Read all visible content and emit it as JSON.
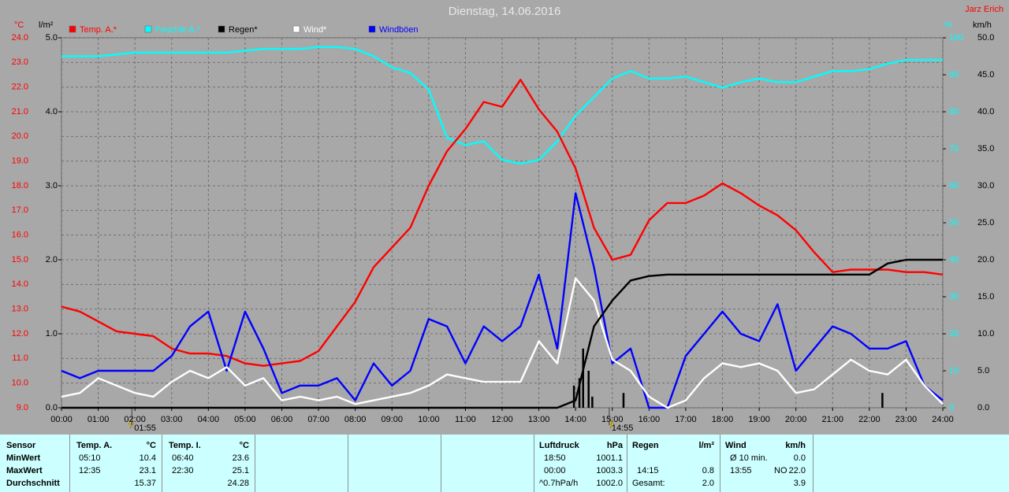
{
  "chart_data": {
    "type": "line",
    "title": "Dienstag, 14.06.2016",
    "author": "Jarz Erich",
    "units": {
      "y": "°C",
      "y2": "l/m²",
      "y3": "%",
      "y4": "km/h"
    },
    "grid": true,
    "x": [
      0,
      0.5,
      1,
      1.5,
      2,
      2.5,
      3,
      3.5,
      4,
      4.5,
      5,
      5.5,
      6,
      6.5,
      7,
      7.5,
      8,
      8.5,
      9,
      9.5,
      10,
      10.5,
      11,
      11.5,
      12,
      12.5,
      13,
      13.5,
      14,
      14.5,
      15,
      15.5,
      16,
      16.5,
      17,
      17.5,
      18,
      18.5,
      19,
      19.5,
      20,
      20.5,
      21,
      21.5,
      22,
      22.5,
      23,
      23.5,
      24
    ],
    "xlim": [
      0,
      24
    ],
    "xticks": [
      {
        "value": 0,
        "label": "00:00"
      },
      {
        "value": 1,
        "label": "01:00"
      },
      {
        "value": 2,
        "label": "02:00"
      },
      {
        "value": 3,
        "label": "03:00"
      },
      {
        "value": 4,
        "label": "04:00"
      },
      {
        "value": 5,
        "label": "05:00"
      },
      {
        "value": 6,
        "label": "06:00"
      },
      {
        "value": 7,
        "label": "07:00"
      },
      {
        "value": 8,
        "label": "08:00"
      },
      {
        "value": 9,
        "label": "09:00"
      },
      {
        "value": 10,
        "label": "10:00"
      },
      {
        "value": 11,
        "label": "11:00"
      },
      {
        "value": 12,
        "label": "12:00"
      },
      {
        "value": 13,
        "label": "13:00"
      },
      {
        "value": 14,
        "label": "14:00"
      },
      {
        "value": 15,
        "label": "15:00"
      },
      {
        "value": 16,
        "label": "16:00"
      },
      {
        "value": 17,
        "label": "17:00"
      },
      {
        "value": 18,
        "label": "18:00"
      },
      {
        "value": 19,
        "label": "19:00"
      },
      {
        "value": 20,
        "label": "20:00"
      },
      {
        "value": 21,
        "label": "21:00"
      },
      {
        "value": 22,
        "label": "22:00"
      },
      {
        "value": 23,
        "label": "23:00"
      },
      {
        "value": 24,
        "label": "24:00"
      }
    ],
    "ylim": [
      9,
      24
    ],
    "yticks": [
      {
        "value": 9,
        "label": "9.0"
      },
      {
        "value": 10,
        "label": "10.0"
      },
      {
        "value": 11,
        "label": "11.0"
      },
      {
        "value": 12,
        "label": "12.0"
      },
      {
        "value": 13,
        "label": "13.0"
      },
      {
        "value": 14,
        "label": "14.0"
      },
      {
        "value": 15,
        "label": "15.0"
      },
      {
        "value": 16,
        "label": "16.0"
      },
      {
        "value": 17,
        "label": "17.0"
      },
      {
        "value": 18,
        "label": "18.0"
      },
      {
        "value": 19,
        "label": "19.0"
      },
      {
        "value": 20,
        "label": "20.0"
      },
      {
        "value": 21,
        "label": "21.0"
      },
      {
        "value": 22,
        "label": "22.0"
      },
      {
        "value": 23,
        "label": "23.0"
      },
      {
        "value": 24,
        "label": "24.0"
      }
    ],
    "y2lim": [
      0,
      5
    ],
    "y2ticks": [
      {
        "value": 0,
        "label": "0.0"
      },
      {
        "value": 1,
        "label": "1.0"
      },
      {
        "value": 2,
        "label": "2.0"
      },
      {
        "value": 3,
        "label": "3.0"
      },
      {
        "value": 4,
        "label": "4.0"
      },
      {
        "value": 5,
        "label": "5.0"
      }
    ],
    "y3lim": [
      0,
      100
    ],
    "y3ticks": [
      0,
      10,
      20,
      30,
      40,
      50,
      60,
      70,
      80,
      90,
      100
    ],
    "y4lim": [
      0,
      50
    ],
    "y4ticks": [
      {
        "value": 0,
        "label": "0.0"
      },
      {
        "value": 5,
        "label": "5.0"
      },
      {
        "value": 10,
        "label": "10.0"
      },
      {
        "value": 15,
        "label": "15.0"
      },
      {
        "value": 20,
        "label": "20.0"
      },
      {
        "value": 25,
        "label": "25.0"
      },
      {
        "value": 30,
        "label": "30.0"
      },
      {
        "value": 35,
        "label": "35.0"
      },
      {
        "value": 40,
        "label": "40.0"
      },
      {
        "value": 45,
        "label": "45.0"
      },
      {
        "value": 50,
        "label": "50.0"
      }
    ],
    "series": [
      {
        "name": "Temp. A.*",
        "color": "#ff0000",
        "axis": "y",
        "values": [
          13.1,
          12.9,
          12.5,
          12.1,
          12.0,
          11.9,
          11.4,
          11.2,
          11.2,
          11.1,
          10.8,
          10.7,
          10.8,
          10.9,
          11.3,
          12.3,
          13.3,
          14.7,
          15.5,
          16.3,
          18.0,
          19.4,
          20.3,
          21.4,
          21.2,
          22.3,
          21.1,
          20.2,
          18.7,
          16.3,
          15.0,
          15.2,
          16.6,
          17.3,
          17.3,
          17.6,
          18.1,
          17.7,
          17.2,
          16.8,
          16.2,
          15.3,
          14.5,
          14.6,
          14.6,
          14.6,
          14.5,
          14.5,
          14.4
        ]
      },
      {
        "name": "Feuchte A.*",
        "color": "#00ffff",
        "axis": "y3",
        "values": [
          95,
          95,
          95,
          95.5,
          96,
          96,
          96,
          96,
          96,
          96,
          96.5,
          97,
          97,
          97,
          97.5,
          97.5,
          97,
          95,
          92,
          90.5,
          86,
          73,
          71,
          72,
          67,
          66,
          67,
          72,
          79,
          84,
          89,
          91,
          89,
          89,
          89.5,
          88,
          86.5,
          88,
          89,
          88,
          88,
          89.5,
          91,
          91,
          91.5,
          93,
          94,
          94,
          94
        ]
      },
      {
        "name": "Regen*",
        "color": "#000000",
        "axis": "y2",
        "values": [
          0,
          0,
          0,
          0,
          0,
          0,
          0,
          0,
          0,
          0,
          0,
          0,
          0,
          0,
          0,
          0,
          0,
          0,
          0,
          0,
          0,
          0,
          0,
          0,
          0,
          0,
          0,
          0,
          0.1,
          1.1,
          1.45,
          1.72,
          1.78,
          1.8,
          1.8,
          1.8,
          1.8,
          1.8,
          1.8,
          1.8,
          1.8,
          1.8,
          1.8,
          1.8,
          1.8,
          1.95,
          2.0,
          2.0,
          2.0
        ]
      },
      {
        "name": "Wind*",
        "color": "#ffffff",
        "axis": "y4",
        "values": [
          1.5,
          2,
          4,
          3,
          2,
          1.5,
          3.5,
          5,
          4,
          5.5,
          3,
          4,
          1,
          1.5,
          1,
          1.5,
          0.5,
          1,
          1.5,
          2,
          3,
          4.5,
          4,
          3.5,
          3.5,
          3.5,
          9,
          6,
          17.5,
          14.5,
          6.5,
          5,
          1.5,
          0,
          1,
          4,
          6,
          5.5,
          6,
          5,
          2,
          2.5,
          4.5,
          6.5,
          5,
          4.5,
          6.5,
          3,
          0.5
        ]
      },
      {
        "name": "Windböen",
        "color": "#0000ff",
        "axis": "y4",
        "values": [
          5,
          4,
          5,
          5,
          5,
          5,
          7,
          11,
          13,
          5,
          13,
          8,
          2,
          3,
          3,
          4,
          1,
          6,
          3,
          5,
          12,
          11,
          6,
          11,
          9,
          11,
          18,
          8,
          29,
          19,
          6,
          8,
          0,
          0,
          7,
          10,
          13,
          10,
          9,
          14,
          5,
          8,
          11,
          10,
          8,
          8,
          9,
          3,
          1
        ]
      }
    ],
    "rain_bars": {
      "color": "#000000",
      "axis": "y2",
      "x": [
        13.95,
        14.1,
        14.2,
        14.35,
        14.45,
        15.3,
        22.35
      ],
      "values": [
        0.3,
        0.4,
        0.8,
        0.5,
        0.15,
        0.2,
        0.2
      ]
    },
    "annotations": [
      {
        "x": 1.9166,
        "label": "01:55"
      },
      {
        "x": 14.9166,
        "label": "14:55"
      }
    ]
  },
  "table": {
    "sensor": {
      "header": "Sensor",
      "min": "MinWert",
      "max": "MaxWert",
      "avg": "Durchschnitt"
    },
    "temp_a": {
      "header": "Temp. A.",
      "unit": "°C",
      "min": {
        "time": "05:10",
        "value": "10.4"
      },
      "max": {
        "time": "12:35",
        "value": "23.1"
      },
      "avg": {
        "value": "15.37"
      }
    },
    "temp_i": {
      "header": "Temp. I.",
      "unit": "°C",
      "min": {
        "time": "06:40",
        "value": "23.6"
      },
      "max": {
        "time": "22:30",
        "value": "25.1"
      },
      "avg": {
        "value": "24.28"
      }
    },
    "pressure": {
      "header": "Luftdruck",
      "unit": "hPa",
      "min": {
        "time": "18:50",
        "value": "1001.1"
      },
      "max": {
        "time": "00:00",
        "value": "1003.3"
      },
      "avg": {
        "time": "^0.7hPa/h",
        "value": "1002.0"
      }
    },
    "rain": {
      "header": "Regen",
      "unit": "l/m²",
      "max": {
        "time": "14:15",
        "value": "0.8"
      },
      "avg": {
        "time": "Gesamt:",
        "value": "2.0"
      }
    },
    "wind": {
      "header": "Wind",
      "unit": "km/h",
      "min": {
        "time": "Ø 10 min.",
        "value": "0.0"
      },
      "max": {
        "time": "13:55",
        "dir": "NO",
        "value": "22.0"
      },
      "avg": {
        "value": "3.9"
      }
    }
  }
}
